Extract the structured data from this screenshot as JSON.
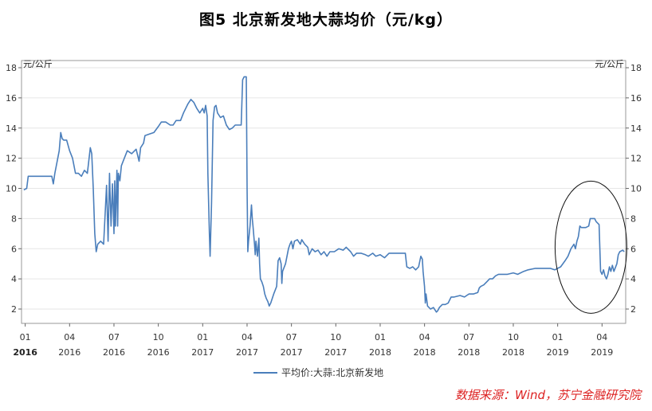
{
  "page": {
    "title": "图5 北京新发地大蒜均价（元/kg）",
    "source": "数据来源：Wind，苏宁金融研究院"
  },
  "chart_data": {
    "type": "line",
    "ylabel_left": "元/公斤",
    "ylabel_right": "元/公斤",
    "ylim": [
      1,
      18
    ],
    "yticks": [
      2,
      4,
      6,
      8,
      10,
      12,
      14,
      16,
      18
    ],
    "x_axis_labels": [
      {
        "month": "01",
        "year": "2016",
        "m": 0
      },
      {
        "month": "04",
        "year": "2016",
        "m": 3
      },
      {
        "month": "07",
        "year": "2016",
        "m": 6
      },
      {
        "month": "10",
        "year": "2016",
        "m": 9
      },
      {
        "month": "01",
        "year": "2017",
        "m": 12
      },
      {
        "month": "04",
        "year": "2017",
        "m": 15
      },
      {
        "month": "07",
        "year": "2017",
        "m": 18
      },
      {
        "month": "10",
        "year": "2017",
        "m": 21
      },
      {
        "month": "01",
        "year": "2018",
        "m": 24
      },
      {
        "month": "04",
        "year": "2018",
        "m": 27
      },
      {
        "month": "07",
        "year": "2018",
        "m": 30
      },
      {
        "month": "10",
        "year": "2018",
        "m": 33
      },
      {
        "month": "01",
        "year": "2019",
        "m": 36
      },
      {
        "month": "04",
        "year": "2019",
        "m": 39
      }
    ],
    "grid": "y",
    "legend": "bottom-center",
    "series": [
      {
        "name": "平均价:大蒜:北京新发地",
        "color": "#4a7ebb",
        "points": [
          [
            -0.1,
            9.9
          ],
          [
            0.1,
            10.0
          ],
          [
            0.2,
            10.8
          ],
          [
            0.6,
            10.8
          ],
          [
            1.3,
            10.8
          ],
          [
            1.8,
            10.8
          ],
          [
            1.9,
            10.3
          ],
          [
            2.0,
            11.0
          ],
          [
            2.3,
            12.5
          ],
          [
            2.4,
            13.7
          ],
          [
            2.5,
            13.3
          ],
          [
            2.6,
            13.2
          ],
          [
            2.8,
            13.2
          ],
          [
            3.0,
            12.5
          ],
          [
            3.2,
            12.0
          ],
          [
            3.4,
            11.0
          ],
          [
            3.6,
            11.0
          ],
          [
            3.8,
            10.8
          ],
          [
            4.0,
            11.2
          ],
          [
            4.2,
            11.0
          ],
          [
            4.4,
            12.7
          ],
          [
            4.5,
            12.3
          ],
          [
            4.6,
            10.0
          ],
          [
            4.7,
            7.0
          ],
          [
            4.8,
            5.8
          ],
          [
            4.9,
            6.3
          ],
          [
            5.1,
            6.5
          ],
          [
            5.3,
            6.3
          ],
          [
            5.5,
            10.2
          ],
          [
            5.6,
            6.5
          ],
          [
            5.7,
            11.0
          ],
          [
            5.8,
            7.5
          ],
          [
            5.9,
            10.3
          ],
          [
            6.0,
            7.0
          ],
          [
            6.05,
            10.5
          ],
          [
            6.1,
            7.5
          ],
          [
            6.2,
            11.2
          ],
          [
            6.25,
            7.5
          ],
          [
            6.3,
            11.0
          ],
          [
            6.4,
            10.5
          ],
          [
            6.5,
            11.5
          ],
          [
            6.7,
            12.0
          ],
          [
            6.9,
            12.5
          ],
          [
            7.2,
            12.3
          ],
          [
            7.5,
            12.6
          ],
          [
            7.7,
            11.8
          ],
          [
            7.8,
            12.7
          ],
          [
            8.0,
            13.0
          ],
          [
            8.1,
            13.5
          ],
          [
            8.4,
            13.6
          ],
          [
            8.7,
            13.7
          ],
          [
            9.0,
            14.1
          ],
          [
            9.2,
            14.4
          ],
          [
            9.5,
            14.4
          ],
          [
            9.8,
            14.2
          ],
          [
            10.0,
            14.2
          ],
          [
            10.2,
            14.5
          ],
          [
            10.5,
            14.5
          ],
          [
            10.7,
            15.0
          ],
          [
            11.0,
            15.6
          ],
          [
            11.2,
            15.9
          ],
          [
            11.4,
            15.7
          ],
          [
            11.6,
            15.3
          ],
          [
            11.8,
            15.0
          ],
          [
            12.0,
            15.3
          ],
          [
            12.1,
            15.0
          ],
          [
            12.2,
            15.5
          ],
          [
            12.3,
            14.8
          ],
          [
            12.35,
            11.0
          ],
          [
            12.45,
            7.0
          ],
          [
            12.5,
            5.5
          ],
          [
            12.6,
            9.0
          ],
          [
            12.7,
            14.5
          ],
          [
            12.8,
            15.4
          ],
          [
            12.9,
            15.5
          ],
          [
            13.0,
            15.0
          ],
          [
            13.2,
            14.7
          ],
          [
            13.4,
            14.8
          ],
          [
            13.6,
            14.2
          ],
          [
            13.8,
            13.9
          ],
          [
            14.0,
            14.0
          ],
          [
            14.2,
            14.2
          ],
          [
            14.6,
            14.2
          ],
          [
            14.7,
            17.2
          ],
          [
            14.8,
            17.4
          ],
          [
            14.95,
            17.4
          ],
          [
            15.0,
            10.0
          ],
          [
            15.05,
            5.8
          ],
          [
            15.1,
            6.5
          ],
          [
            15.2,
            7.5
          ],
          [
            15.3,
            8.9
          ],
          [
            15.35,
            8.0
          ],
          [
            15.4,
            7.5
          ],
          [
            15.5,
            6.3
          ],
          [
            15.55,
            5.6
          ],
          [
            15.6,
            6.5
          ],
          [
            15.7,
            5.5
          ],
          [
            15.8,
            6.7
          ],
          [
            15.85,
            5.0
          ],
          [
            15.9,
            4.0
          ],
          [
            16.0,
            3.8
          ],
          [
            16.1,
            3.5
          ],
          [
            16.2,
            3.0
          ],
          [
            16.3,
            2.7
          ],
          [
            16.4,
            2.5
          ],
          [
            16.5,
            2.2
          ],
          [
            16.6,
            2.4
          ],
          [
            16.8,
            3.0
          ],
          [
            17.0,
            3.5
          ],
          [
            17.1,
            5.2
          ],
          [
            17.2,
            5.4
          ],
          [
            17.3,
            5.0
          ],
          [
            17.35,
            3.7
          ],
          [
            17.4,
            4.5
          ],
          [
            17.6,
            5.0
          ],
          [
            17.8,
            6.0
          ],
          [
            17.9,
            6.3
          ],
          [
            18.0,
            6.5
          ],
          [
            18.1,
            6.0
          ],
          [
            18.2,
            6.5
          ],
          [
            18.4,
            6.6
          ],
          [
            18.6,
            6.3
          ],
          [
            18.7,
            6.6
          ],
          [
            18.9,
            6.3
          ],
          [
            19.1,
            6.1
          ],
          [
            19.2,
            5.6
          ],
          [
            19.4,
            6.0
          ],
          [
            19.6,
            5.8
          ],
          [
            19.8,
            5.9
          ],
          [
            20.0,
            5.6
          ],
          [
            20.2,
            5.8
          ],
          [
            20.4,
            5.5
          ],
          [
            20.6,
            5.8
          ],
          [
            20.9,
            5.8
          ],
          [
            21.2,
            6.0
          ],
          [
            21.5,
            5.9
          ],
          [
            21.7,
            6.1
          ],
          [
            22.0,
            5.8
          ],
          [
            22.2,
            5.5
          ],
          [
            22.4,
            5.7
          ],
          [
            22.7,
            5.7
          ],
          [
            23.0,
            5.6
          ],
          [
            23.2,
            5.5
          ],
          [
            23.5,
            5.7
          ],
          [
            23.7,
            5.5
          ],
          [
            24.0,
            5.6
          ],
          [
            24.3,
            5.4
          ],
          [
            24.6,
            5.7
          ],
          [
            25.0,
            5.7
          ],
          [
            25.4,
            5.7
          ],
          [
            25.7,
            5.7
          ],
          [
            25.8,
            4.8
          ],
          [
            26.0,
            4.7
          ],
          [
            26.2,
            4.8
          ],
          [
            26.4,
            4.6
          ],
          [
            26.6,
            4.8
          ],
          [
            26.75,
            5.5
          ],
          [
            26.85,
            5.3
          ],
          [
            26.9,
            4.5
          ],
          [
            27.0,
            3.5
          ],
          [
            27.05,
            2.4
          ],
          [
            27.1,
            3.0
          ],
          [
            27.2,
            2.2
          ],
          [
            27.4,
            2.0
          ],
          [
            27.6,
            2.1
          ],
          [
            27.8,
            1.8
          ],
          [
            27.9,
            1.9
          ],
          [
            28.0,
            2.1
          ],
          [
            28.2,
            2.3
          ],
          [
            28.4,
            2.3
          ],
          [
            28.6,
            2.4
          ],
          [
            28.8,
            2.8
          ],
          [
            29.0,
            2.8
          ],
          [
            29.4,
            2.9
          ],
          [
            29.7,
            2.8
          ],
          [
            30.0,
            3.0
          ],
          [
            30.3,
            3.0
          ],
          [
            30.6,
            3.1
          ],
          [
            30.7,
            3.4
          ],
          [
            30.8,
            3.5
          ],
          [
            31.0,
            3.6
          ],
          [
            31.2,
            3.8
          ],
          [
            31.4,
            4.0
          ],
          [
            31.6,
            4.0
          ],
          [
            31.8,
            4.2
          ],
          [
            32.0,
            4.3
          ],
          [
            32.3,
            4.3
          ],
          [
            32.6,
            4.3
          ],
          [
            33.0,
            4.4
          ],
          [
            33.3,
            4.3
          ],
          [
            33.7,
            4.5
          ],
          [
            34.0,
            4.6
          ],
          [
            34.5,
            4.7
          ],
          [
            35.0,
            4.7
          ],
          [
            35.5,
            4.7
          ],
          [
            35.8,
            4.6
          ],
          [
            36.0,
            4.7
          ],
          [
            36.2,
            4.8
          ],
          [
            36.5,
            5.2
          ],
          [
            36.7,
            5.5
          ],
          [
            36.9,
            6.0
          ],
          [
            37.1,
            6.3
          ],
          [
            37.2,
            6.0
          ],
          [
            37.3,
            6.5
          ],
          [
            37.4,
            6.8
          ],
          [
            37.5,
            7.5
          ],
          [
            37.6,
            7.4
          ],
          [
            37.9,
            7.4
          ],
          [
            38.1,
            7.5
          ],
          [
            38.2,
            8.0
          ],
          [
            38.5,
            8.0
          ],
          [
            38.6,
            7.8
          ],
          [
            38.8,
            7.6
          ],
          [
            38.9,
            4.5
          ],
          [
            39.0,
            4.3
          ],
          [
            39.1,
            4.6
          ],
          [
            39.2,
            4.2
          ],
          [
            39.3,
            4.0
          ],
          [
            39.4,
            4.3
          ],
          [
            39.5,
            4.8
          ],
          [
            39.6,
            4.5
          ],
          [
            39.7,
            4.9
          ],
          [
            39.8,
            4.5
          ],
          [
            40.0,
            5.0
          ],
          [
            40.1,
            5.6
          ],
          [
            40.2,
            5.8
          ],
          [
            40.4,
            5.9
          ],
          [
            40.5,
            5.8
          ]
        ]
      }
    ]
  }
}
